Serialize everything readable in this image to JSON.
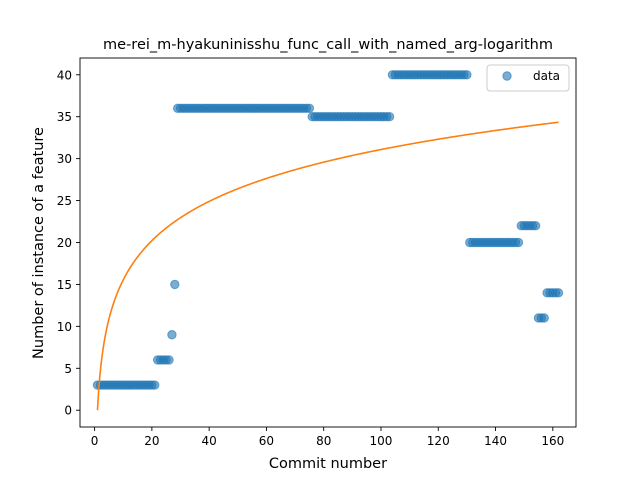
{
  "chart_data": {
    "type": "scatter",
    "title": "me-rei_m-hyakuninisshu_func_call_with_named_arg-logarithm",
    "xlabel": "Commit number",
    "ylabel": "Number of instance of a feature",
    "xlim": [
      -5.1,
      168.1
    ],
    "ylim": [
      -2.0,
      42.0
    ],
    "x_ticks": [
      0,
      20,
      40,
      60,
      80,
      100,
      120,
      140,
      160
    ],
    "y_ticks": [
      0,
      5,
      10,
      15,
      20,
      25,
      30,
      35,
      40
    ],
    "legend": {
      "position": "top-right",
      "entries": [
        "data"
      ]
    },
    "grid": false,
    "colors": {
      "data": "#1f77b4",
      "fit": "#ff7f0e"
    },
    "series": [
      {
        "name": "data",
        "kind": "scatter",
        "segments": [
          {
            "x_from": 1,
            "x_to": 21,
            "y": 3
          },
          {
            "x_from": 22,
            "x_to": 26,
            "y": 6
          },
          {
            "x_from": 27,
            "x_to": 27,
            "y": 9
          },
          {
            "x_from": 28,
            "x_to": 28,
            "y": 15
          },
          {
            "x_from": 29,
            "x_to": 75,
            "y": 36
          },
          {
            "x_from": 76,
            "x_to": 103,
            "y": 35
          },
          {
            "x_from": 104,
            "x_to": 130,
            "y": 40
          },
          {
            "x_from": 131,
            "x_to": 148,
            "y": 20
          },
          {
            "x_from": 149,
            "x_to": 154,
            "y": 22
          },
          {
            "x_from": 155,
            "x_to": 157,
            "y": 11
          },
          {
            "x_from": 158,
            "x_to": 162,
            "y": 14
          }
        ]
      },
      {
        "kind": "line",
        "function": "a*ln(x)",
        "coefficient": 6.75,
        "x_range": [
          1,
          162
        ]
      }
    ]
  }
}
